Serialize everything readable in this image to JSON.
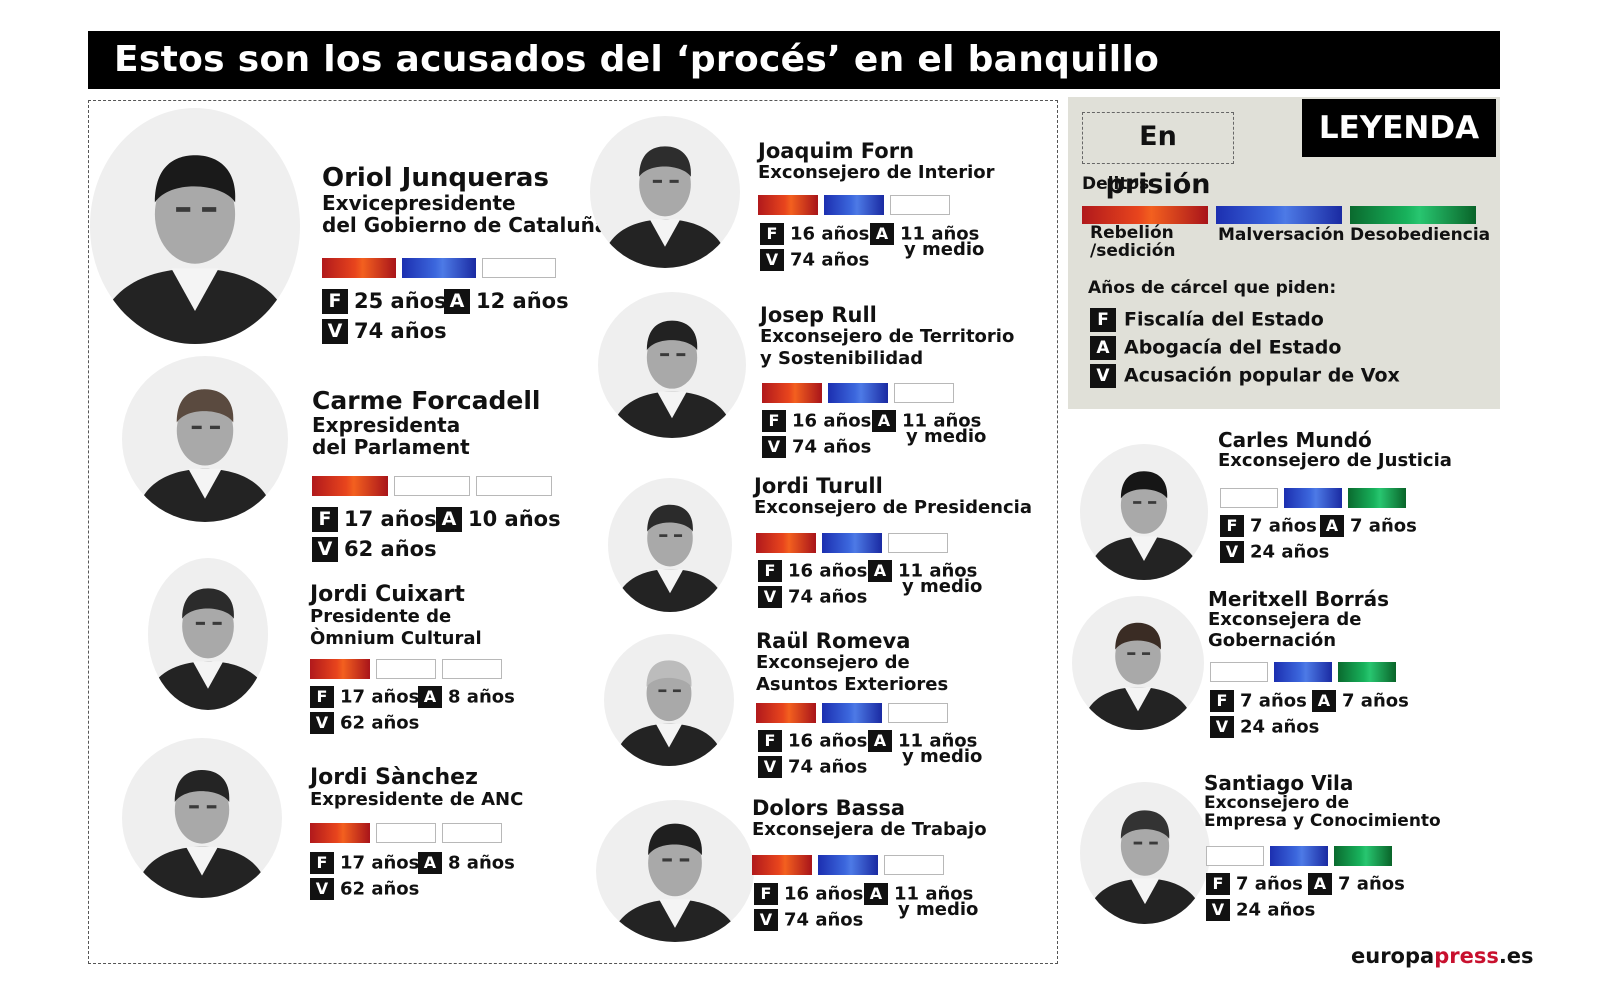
{
  "title": "Estos son los acusados del ‘procés’ en el banquillo",
  "colors": {
    "rebelion": "#e8451d",
    "malversacion": "#3c67dd",
    "desobediencia": "#18b25c",
    "empty": "#ffffff"
  },
  "legend": {
    "heading": "LEYENDA",
    "en_prision": "En prisión",
    "delitos_label": "Delitos",
    "delitos": [
      "Rebelión\n/sedición",
      "Malversación",
      "Desobediencia"
    ],
    "anos_label": "Años de cárcel que piden:",
    "acusaciones": [
      {
        "badge": "F",
        "text": "Fiscalía del Estado"
      },
      {
        "badge": "A",
        "text": "Abogacía del Estado"
      },
      {
        "badge": "V",
        "text": "Acusación popular de Vox"
      }
    ]
  },
  "in_prison": [
    {
      "name": "Oriol Junqueras",
      "role": [
        "Exvicepresidente",
        "del Gobierno de Cataluña"
      ],
      "crimes": [
        "red",
        "blue",
        "empty"
      ],
      "F": "25 años",
      "A": "12 años",
      "V": "74 años"
    },
    {
      "name": "Carme Forcadell",
      "role": [
        "Expresidenta",
        "del Parlament"
      ],
      "crimes": [
        "red",
        "empty",
        "empty"
      ],
      "F": "17 años",
      "A": "10 años",
      "V": "62 años"
    },
    {
      "name": "Jordi Cuixart",
      "role": [
        "Presidente de",
        "Òmnium Cultural"
      ],
      "crimes": [
        "red",
        "empty",
        "empty"
      ],
      "F": "17 años",
      "A": "8 años",
      "V": "62 años"
    },
    {
      "name": "Jordi Sànchez",
      "role": [
        "Expresidente de ANC"
      ],
      "crimes": [
        "red",
        "empty",
        "empty"
      ],
      "F": "17 años",
      "A": "8 años",
      "V": "62 años"
    },
    {
      "name": "Joaquim Forn",
      "role": [
        "Exconsejero de Interior"
      ],
      "crimes": [
        "red",
        "blue",
        "empty"
      ],
      "F": "16 años",
      "A": "11 años",
      "A2": "y medio",
      "V": "74 años"
    },
    {
      "name": "Josep Rull",
      "role": [
        "Exconsejero de Territorio",
        "y Sostenibilidad"
      ],
      "crimes": [
        "red",
        "blue",
        "empty"
      ],
      "F": "16 años",
      "A": "11 años",
      "A2": "y medio",
      "V": "74 años"
    },
    {
      "name": "Jordi Turull",
      "role": [
        "Exconsejero de Presidencia"
      ],
      "crimes": [
        "red",
        "blue",
        "empty"
      ],
      "F": "16 años",
      "A": "11 años",
      "A2": "y medio",
      "V": "74 años"
    },
    {
      "name": "Raül Romeva",
      "role": [
        "Exconsejero de",
        "Asuntos Exteriores"
      ],
      "crimes": [
        "red",
        "blue",
        "empty"
      ],
      "F": "16 años",
      "A": "11 años",
      "A2": "y medio",
      "V": "74 años"
    },
    {
      "name": "Dolors Bassa",
      "role": [
        "Exconsejera de Trabajo"
      ],
      "crimes": [
        "red",
        "blue",
        "empty"
      ],
      "F": "16 años",
      "A": "11 años",
      "A2": "y medio",
      "V": "74 años"
    }
  ],
  "free": [
    {
      "name": "Carles Mundó",
      "role": [
        "Exconsejero de Justicia"
      ],
      "crimes": [
        "empty",
        "blue",
        "green"
      ],
      "F": "7 años",
      "A": "7 años",
      "V": "24 años"
    },
    {
      "name": "Meritxell Borrás",
      "role": [
        "Exconsejera de",
        "Gobernación"
      ],
      "crimes": [
        "empty",
        "blue",
        "green"
      ],
      "F": "7 años",
      "A": "7 años",
      "V": "24 años"
    },
    {
      "name": "Santiago Vila",
      "role": [
        "Exconsejero de",
        "Empresa y Conocimiento"
      ],
      "crimes": [
        "empty",
        "blue",
        "green"
      ],
      "F": "7 años",
      "A": "7 años",
      "V": "24 años"
    }
  ],
  "credit": {
    "part1": "europa",
    "part2": "press",
    "part3": ".es"
  }
}
